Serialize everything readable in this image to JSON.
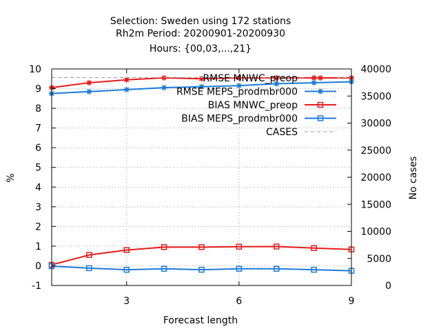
{
  "chart_data": {
    "type": "line",
    "title": [
      "Selection: Sweden using   172 stations",
      "Rh2m   Period: 20200901-20200930",
      "Hours: {00,03,...,21}"
    ],
    "xlabel": "Forecast length",
    "ylabel": "%",
    "y2label": "No cases",
    "xlim": [
      1,
      9
    ],
    "xticks": [
      3,
      6,
      9
    ],
    "ylim": [
      -1,
      10
    ],
    "yticks": [
      -1,
      0,
      1,
      2,
      3,
      4,
      5,
      6,
      7,
      8,
      9,
      10
    ],
    "y2lim": [
      0,
      40000
    ],
    "y2ticks": [
      0,
      5000,
      10000,
      15000,
      20000,
      25000,
      30000,
      35000,
      40000
    ],
    "grid": true,
    "legend_position": "top-right",
    "x": [
      1,
      2,
      3,
      4,
      5,
      6,
      7,
      8,
      9
    ],
    "series": [
      {
        "name": "RMSE MNWC_preop",
        "axis": "y",
        "color": "#e41a1c",
        "marker": "star",
        "values": [
          9.05,
          9.3,
          9.45,
          9.55,
          9.5,
          9.55,
          9.55,
          9.55,
          9.55
        ]
      },
      {
        "name": "RMSE MEPS_prodmbr000",
        "axis": "y",
        "color": "#1a7ad8",
        "marker": "star",
        "values": [
          8.75,
          8.85,
          8.95,
          9.05,
          9.1,
          9.15,
          9.25,
          9.3,
          9.35
        ]
      },
      {
        "name": "BIAS MNWC_preop",
        "axis": "y",
        "color": "#e41a1c",
        "marker": "square",
        "values": [
          0.05,
          0.55,
          0.8,
          0.95,
          0.95,
          0.97,
          0.98,
          0.9,
          0.83
        ]
      },
      {
        "name": "BIAS MEPS_prodmbr000",
        "axis": "y",
        "color": "#1a7ad8",
        "marker": "square",
        "values": [
          -0.02,
          -0.12,
          -0.2,
          -0.15,
          -0.2,
          -0.15,
          -0.15,
          -0.2,
          -0.25
        ]
      },
      {
        "name": "CASES",
        "axis": "y2",
        "color": "#999999",
        "marker": "none",
        "dashed": true,
        "values": [
          38400,
          38400,
          38400,
          38400,
          38400,
          38400,
          38400,
          38400,
          38400
        ]
      }
    ]
  }
}
